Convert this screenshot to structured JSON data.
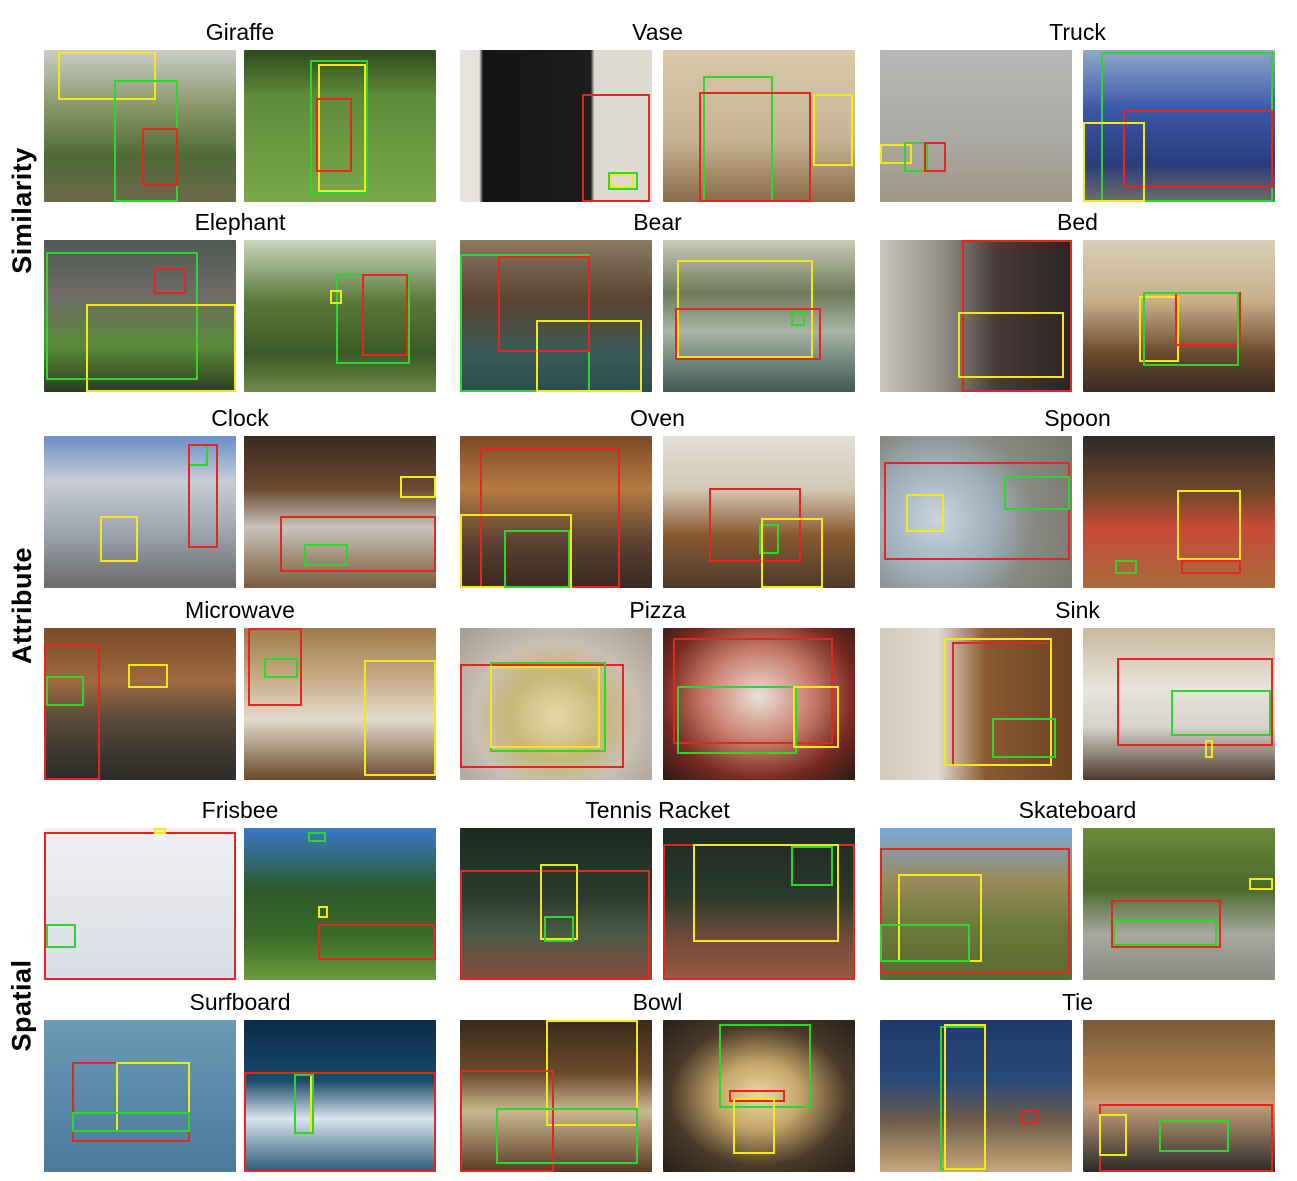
{
  "figure": {
    "row_labels": [
      "Similarity",
      "Attribute",
      "Spatial"
    ],
    "box_colors": {
      "red": "#e3261f",
      "green": "#2fd42f",
      "yellow": "#f2e81a"
    },
    "panels": [
      {
        "title": "Giraffe"
      },
      {
        "title": "Vase"
      },
      {
        "title": "Truck"
      },
      {
        "title": "Elephant"
      },
      {
        "title": "Bear"
      },
      {
        "title": "Bed"
      },
      {
        "title": "Clock"
      },
      {
        "title": "Oven"
      },
      {
        "title": "Spoon"
      },
      {
        "title": "Microwave"
      },
      {
        "title": "Pizza"
      },
      {
        "title": "Sink"
      },
      {
        "title": "Frisbee"
      },
      {
        "title": "Tennis Racket"
      },
      {
        "title": "Skateboard"
      },
      {
        "title": "Surfboard"
      },
      {
        "title": "Bowl"
      },
      {
        "title": "Tie"
      }
    ]
  }
}
